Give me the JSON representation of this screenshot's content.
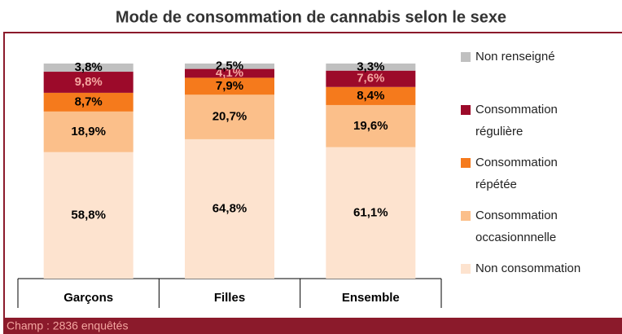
{
  "chart_data": {
    "type": "stacked_bar",
    "title": "Mode de consommation de cannabis selon le sexe",
    "footnote": "Champ : 2836 enquêtés",
    "categories": [
      "Garçons",
      "Filles",
      "Ensemble"
    ],
    "ylim": [
      0,
      100
    ],
    "series": [
      {
        "name": "Non consommation",
        "color": "#fde3cf",
        "label_color": "#000000",
        "values": [
          58.8,
          64.8,
          61.1
        ],
        "value_labels": [
          "58,8%",
          "64,8%",
          "61,1%"
        ]
      },
      {
        "name": "Consommation occasionnnelle",
        "color": "#fbbf8a",
        "label_color": "#000000",
        "values": [
          18.9,
          20.7,
          19.6
        ],
        "value_labels": [
          "18,9%",
          "20,7%",
          "19,6%"
        ]
      },
      {
        "name": "Consommation répétée",
        "color": "#f57a1c",
        "label_color": "#000000",
        "values": [
          8.7,
          7.9,
          8.4
        ],
        "value_labels": [
          "8,7%",
          "7,9%",
          "8,4%"
        ]
      },
      {
        "name": "Consommation régulière",
        "color": "#9c0a2a",
        "label_color": "#f4a6a0",
        "values": [
          9.8,
          4.1,
          7.6
        ],
        "value_labels": [
          "9,8%",
          "4,1%",
          "7,6%"
        ]
      },
      {
        "name": "Non renseigné",
        "color": "#c0c0c0",
        "label_color": "#000000",
        "values": [
          3.8,
          2.5,
          3.3
        ],
        "value_labels": [
          "3,8%",
          "2,5%",
          "3,3%"
        ]
      }
    ]
  }
}
